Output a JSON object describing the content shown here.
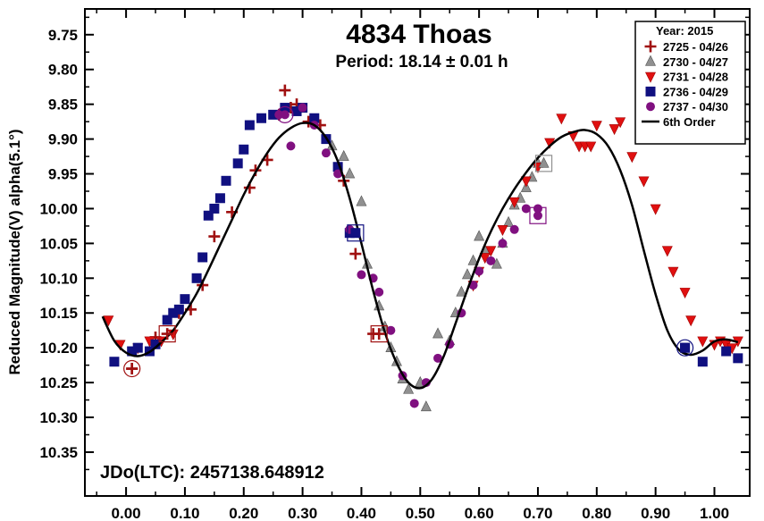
{
  "chart_data": {
    "type": "scatter",
    "title": "4834 Thoas",
    "subtitle": "Period: 18.14 ± 0.01 h",
    "annotation": "JDo(LTC): 2457138.648912",
    "xlabel": "",
    "ylabel": "Reduced Magnitude(V) alpha(5.1°)",
    "xlim": [
      -0.07,
      1.06
    ],
    "ylim": [
      9.713,
      10.413
    ],
    "y_inverted": true,
    "x_ticks": [
      "0.00",
      "0.10",
      "0.20",
      "0.30",
      "0.40",
      "0.50",
      "0.60",
      "0.70",
      "0.80",
      "0.90",
      "1.00"
    ],
    "y_ticks": [
      "9.75",
      "9.80",
      "9.85",
      "9.90",
      "9.95",
      "10.00",
      "10.05",
      "10.10",
      "10.15",
      "10.20",
      "10.25",
      "10.30",
      "10.35"
    ],
    "legend": {
      "position": "top-right",
      "title": "Year: 2015",
      "entries": [
        {
          "label": "2725 - 04/26",
          "marker": "plus",
          "color": "#a01010"
        },
        {
          "label": "2730 - 04/27",
          "marker": "triangle-up",
          "color": "#909090"
        },
        {
          "label": "2731 - 04/28",
          "marker": "triangle-down",
          "color": "#e01010"
        },
        {
          "label": "2736 - 04/29",
          "marker": "square",
          "color": "#101080"
        },
        {
          "label": "2737 - 04/30",
          "marker": "circle",
          "color": "#801080"
        },
        {
          "label": "6th Order",
          "marker": "line",
          "color": "#000000"
        }
      ]
    },
    "fit_curve": {
      "name": "6th Order",
      "x": [
        -0.04,
        -0.02,
        0.0,
        0.02,
        0.04,
        0.06,
        0.08,
        0.1,
        0.12,
        0.14,
        0.16,
        0.18,
        0.2,
        0.22,
        0.24,
        0.26,
        0.28,
        0.3,
        0.32,
        0.34,
        0.36,
        0.38,
        0.4,
        0.42,
        0.44,
        0.46,
        0.48,
        0.5,
        0.52,
        0.54,
        0.56,
        0.58,
        0.6,
        0.62,
        0.64,
        0.66,
        0.68,
        0.7,
        0.72,
        0.74,
        0.76,
        0.78,
        0.8,
        0.82,
        0.84,
        0.86,
        0.88,
        0.9,
        0.92,
        0.94,
        0.96,
        0.98,
        1.0,
        1.02,
        1.04
      ],
      "y": [
        10.155,
        10.19,
        10.207,
        10.212,
        10.206,
        10.192,
        10.175,
        10.15,
        10.122,
        10.088,
        10.052,
        10.016,
        9.98,
        9.948,
        9.92,
        9.898,
        9.884,
        9.877,
        9.88,
        9.898,
        9.932,
        9.985,
        10.05,
        10.118,
        10.178,
        10.222,
        10.25,
        10.258,
        10.245,
        10.212,
        10.165,
        10.117,
        10.072,
        10.033,
        10.0,
        9.972,
        9.948,
        9.927,
        9.91,
        9.897,
        9.89,
        9.887,
        9.893,
        9.911,
        9.945,
        9.995,
        10.06,
        10.123,
        10.175,
        10.203,
        10.21,
        10.204,
        10.191,
        10.188,
        10.192
      ]
    },
    "series": [
      {
        "name": "2725 - 04/26",
        "marker": "plus",
        "color": "#a01010",
        "x": [
          0.01,
          0.05,
          0.09,
          0.11,
          0.13,
          0.15,
          0.18,
          0.21,
          0.22,
          0.24,
          0.26,
          0.27,
          0.28,
          0.29,
          0.31,
          0.33,
          0.37,
          0.39,
          0.42
        ],
        "y": [
          10.23,
          10.185,
          10.15,
          10.145,
          10.11,
          10.04,
          10.005,
          9.97,
          9.945,
          9.93,
          9.865,
          9.83,
          9.855,
          9.85,
          9.875,
          9.88,
          9.96,
          10.065,
          10.18
        ]
      },
      {
        "name": "2730 - 04/27",
        "marker": "triangle-up",
        "color": "#909090",
        "x": [
          0.35,
          0.37,
          0.38,
          0.4,
          0.41,
          0.43,
          0.44,
          0.45,
          0.46,
          0.47,
          0.48,
          0.5,
          0.51,
          0.53,
          0.55,
          0.56,
          0.57,
          0.58,
          0.59,
          0.6,
          0.61,
          0.63,
          0.64,
          0.65,
          0.66,
          0.67,
          0.68,
          0.69,
          0.7
        ],
        "y": [
          9.91,
          9.925,
          9.95,
          9.99,
          10.08,
          10.14,
          10.17,
          10.2,
          10.22,
          10.245,
          10.26,
          10.25,
          10.285,
          10.18,
          10.19,
          10.15,
          10.12,
          10.095,
          10.075,
          10.04,
          10.06,
          10.08,
          10.05,
          10.02,
          9.995,
          9.985,
          9.97,
          9.955,
          9.935
        ]
      },
      {
        "name": "2731 - 04/28",
        "marker": "triangle-down",
        "color": "#e01010",
        "x": [
          -0.03,
          -0.01,
          0.02,
          0.04,
          0.06,
          0.08,
          0.59,
          0.6,
          0.61,
          0.62,
          0.64,
          0.66,
          0.68,
          0.7,
          0.72,
          0.74,
          0.76,
          0.77,
          0.78,
          0.79,
          0.8,
          0.83,
          0.84,
          0.86,
          0.88,
          0.9,
          0.92,
          0.93,
          0.95,
          0.96,
          0.98,
          1.0,
          1.01,
          1.02,
          1.03,
          1.04
        ],
        "y": [
          10.16,
          10.195,
          10.2,
          10.19,
          10.19,
          10.18,
          10.11,
          10.09,
          10.07,
          10.06,
          10.03,
          9.99,
          9.96,
          9.94,
          9.905,
          9.87,
          9.895,
          9.91,
          9.91,
          9.91,
          9.88,
          9.885,
          9.875,
          9.925,
          9.96,
          10.0,
          10.06,
          10.09,
          10.12,
          10.16,
          10.19,
          10.195,
          10.19,
          10.195,
          10.2,
          10.19
        ]
      },
      {
        "name": "2736 - 04/29",
        "marker": "square",
        "color": "#101080",
        "x": [
          -0.02,
          0.01,
          0.02,
          0.04,
          0.05,
          0.07,
          0.08,
          0.09,
          0.1,
          0.12,
          0.13,
          0.14,
          0.15,
          0.16,
          0.17,
          0.19,
          0.2,
          0.21,
          0.23,
          0.25,
          0.27,
          0.29,
          0.3,
          0.32,
          0.34,
          0.36,
          0.38,
          0.95,
          0.98,
          1.02,
          1.04
        ],
        "y": [
          10.22,
          10.205,
          10.2,
          10.205,
          10.195,
          10.16,
          10.15,
          10.145,
          10.13,
          10.1,
          10.07,
          10.01,
          10.0,
          9.985,
          9.96,
          9.935,
          9.915,
          9.88,
          9.87,
          9.865,
          9.855,
          9.86,
          9.855,
          9.87,
          9.9,
          9.94,
          10.035,
          10.2,
          10.22,
          10.205,
          10.215
        ]
      },
      {
        "name": "2737 - 04/30",
        "marker": "circle",
        "color": "#801080",
        "x": [
          0.26,
          0.28,
          0.3,
          0.32,
          0.34,
          0.36,
          0.38,
          0.4,
          0.42,
          0.43,
          0.45,
          0.47,
          0.49,
          0.51,
          0.53,
          0.55,
          0.57,
          0.59,
          0.6,
          0.62,
          0.64,
          0.66,
          0.68,
          0.7
        ],
        "y": [
          9.865,
          9.91,
          9.855,
          9.88,
          9.92,
          9.95,
          10.03,
          10.095,
          10.1,
          10.12,
          10.175,
          10.24,
          10.28,
          10.25,
          10.215,
          10.195,
          10.15,
          10.11,
          10.09,
          10.075,
          10.05,
          10.03,
          10.0,
          10.0
        ]
      }
    ],
    "highlighted_points": [
      {
        "series": "2725 - 04/26",
        "x": 0.01,
        "y": 10.23,
        "shape": "circle"
      },
      {
        "series": "2725 - 04/26",
        "x": 0.07,
        "y": 10.18,
        "shape": "square"
      },
      {
        "series": "2737 - 04/30",
        "x": 0.27,
        "y": 9.865,
        "shape": "circle"
      },
      {
        "series": "2736 - 04/29",
        "x": 0.39,
        "y": 10.035,
        "shape": "square"
      },
      {
        "series": "2725 - 04/26",
        "x": 0.43,
        "y": 10.18,
        "shape": "square"
      },
      {
        "series": "2737 - 04/30",
        "x": 0.7,
        "y": 10.01,
        "shape": "square"
      },
      {
        "series": "2730 - 04/27",
        "x": 0.71,
        "y": 9.935,
        "shape": "square"
      },
      {
        "series": "2736 - 04/29",
        "x": 0.95,
        "y": 10.2,
        "shape": "circle"
      }
    ]
  }
}
